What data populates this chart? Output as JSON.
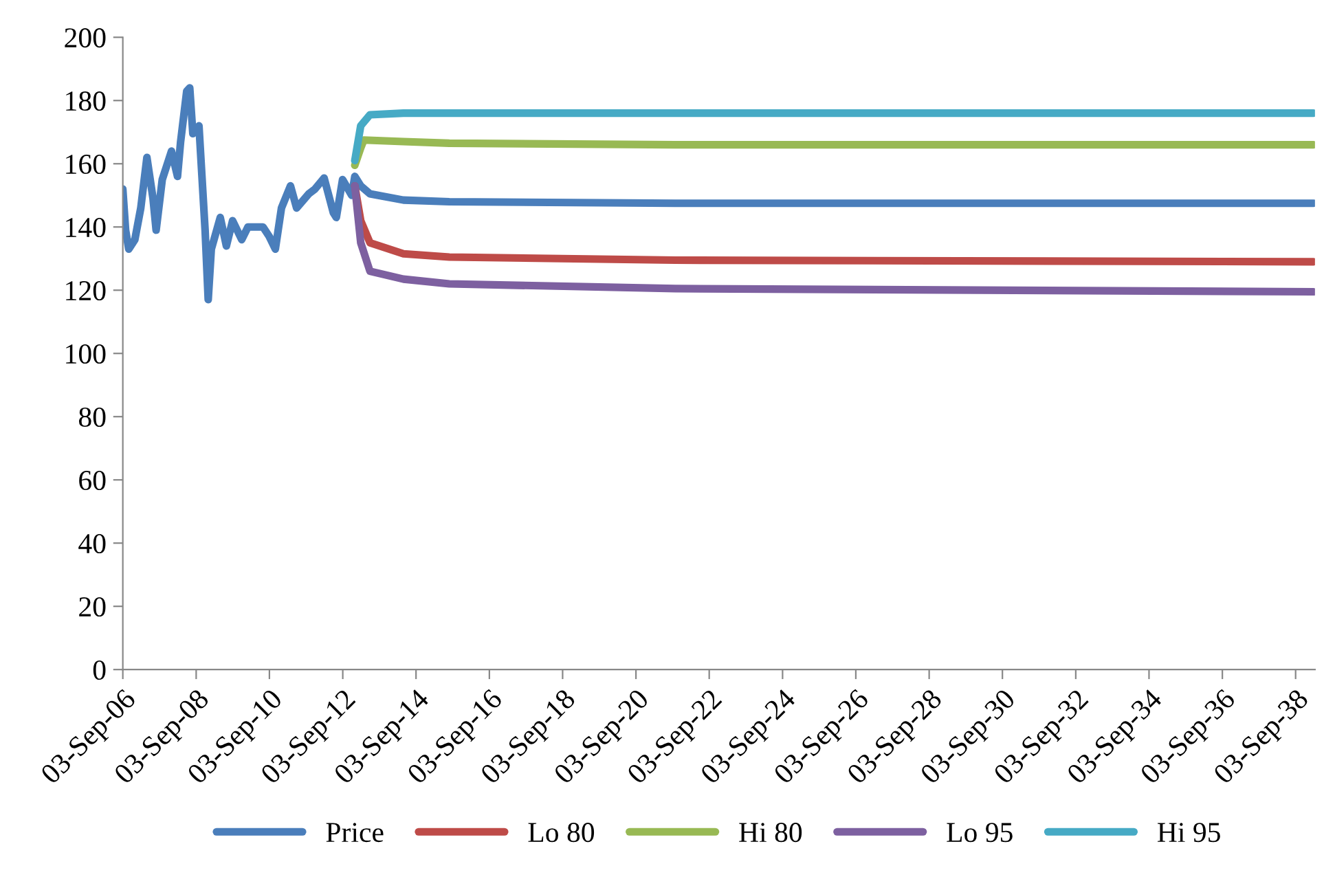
{
  "chart_data": {
    "type": "line",
    "legend": "bottom",
    "grid": false,
    "marker": "none",
    "line_style": "solid",
    "xlim": [
      "2006-09-03",
      "2039-03-15"
    ],
    "ylim": [
      0,
      200
    ],
    "yticks": [
      0,
      20,
      40,
      60,
      80,
      100,
      120,
      140,
      160,
      180,
      200
    ],
    "xticks": [
      {
        "value": "2006-09-03",
        "label": "03-Sep-06"
      },
      {
        "value": "2008-09-03",
        "label": "03-Sep-08"
      },
      {
        "value": "2010-09-03",
        "label": "03-Sep-10"
      },
      {
        "value": "2012-09-03",
        "label": "03-Sep-12"
      },
      {
        "value": "2014-09-03",
        "label": "03-Sep-14"
      },
      {
        "value": "2016-09-03",
        "label": "03-Sep-16"
      },
      {
        "value": "2018-09-03",
        "label": "03-Sep-18"
      },
      {
        "value": "2020-09-03",
        "label": "03-Sep-20"
      },
      {
        "value": "2022-09-03",
        "label": "03-Sep-22"
      },
      {
        "value": "2024-09-03",
        "label": "03-Sep-24"
      },
      {
        "value": "2026-09-03",
        "label": "03-Sep-26"
      },
      {
        "value": "2028-09-03",
        "label": "03-Sep-28"
      },
      {
        "value": "2030-09-03",
        "label": "03-Sep-30"
      },
      {
        "value": "2032-09-03",
        "label": "03-Sep-32"
      },
      {
        "value": "2034-09-03",
        "label": "03-Sep-34"
      },
      {
        "value": "2036-09-03",
        "label": "03-Sep-36"
      },
      {
        "value": "2038-09-03",
        "label": "03-Sep-38"
      }
    ],
    "series": [
      {
        "name": "Price",
        "color": "#4a7ebb",
        "x": [
          "2006-09-03",
          "2006-10",
          "2006-11",
          "2007-01",
          "2007-03",
          "2007-05",
          "2007-07",
          "2007-08",
          "2007-10",
          "2008-01",
          "2008-03",
          "2008-04",
          "2008-06",
          "2008-07",
          "2008-08",
          "2008-10",
          "2008-12",
          "2009-01",
          "2009-02",
          "2009-05",
          "2009-07",
          "2009-09",
          "2009-12",
          "2010-02",
          "2010-07",
          "2010-09",
          "2010-11",
          "2011-01",
          "2011-04",
          "2011-06",
          "2011-10",
          "2011-12",
          "2012-03",
          "2012-06",
          "2012-07",
          "2012-09",
          "2012-12",
          "2013-01",
          "2013-03",
          "2013-06",
          "2014-05",
          "2015-08",
          "2021-10",
          "2039-03"
        ],
        "values": [
          152,
          139,
          133,
          136,
          146,
          162,
          149,
          139,
          155,
          164,
          156,
          167,
          183,
          184,
          169.5,
          172,
          139,
          117,
          133,
          143,
          134,
          142,
          136,
          140,
          140,
          137,
          133,
          146,
          153,
          146,
          150.5,
          152,
          155.5,
          144.5,
          143,
          155,
          150,
          156,
          153,
          150.5,
          148.5,
          148,
          147.5,
          147.5
        ]
      },
      {
        "name": "Lo 80",
        "color": "#be4b48",
        "x": [
          "2013-01",
          "2013-03",
          "2013-06",
          "2014-05",
          "2015-08",
          "2021-10",
          "2039-03"
        ],
        "values": [
          153,
          142,
          135,
          131.5,
          130.5,
          129.5,
          129
        ]
      },
      {
        "name": "Hi 80",
        "color": "#98b954",
        "x": [
          "2013-01",
          "2013-03",
          "2013-04",
          "2014-05",
          "2015-08",
          "2021-10",
          "2039-03"
        ],
        "values": [
          159.5,
          165,
          167.5,
          167,
          166.5,
          166,
          166
        ]
      },
      {
        "name": "Lo 95",
        "color": "#7d60a0",
        "x": [
          "2013-01",
          "2013-03",
          "2013-06",
          "2014-05",
          "2015-08",
          "2021-10",
          "2039-03"
        ],
        "values": [
          153,
          135,
          126,
          123.5,
          122,
          120.5,
          119.5
        ]
      },
      {
        "name": "Hi 95",
        "color": "#46aac5",
        "x": [
          "2013-01",
          "2013-03",
          "2013-06",
          "2014-05",
          "2015-08",
          "2021-10",
          "2039-03"
        ],
        "values": [
          161,
          172,
          175.5,
          176,
          176,
          176,
          176
        ]
      }
    ]
  }
}
